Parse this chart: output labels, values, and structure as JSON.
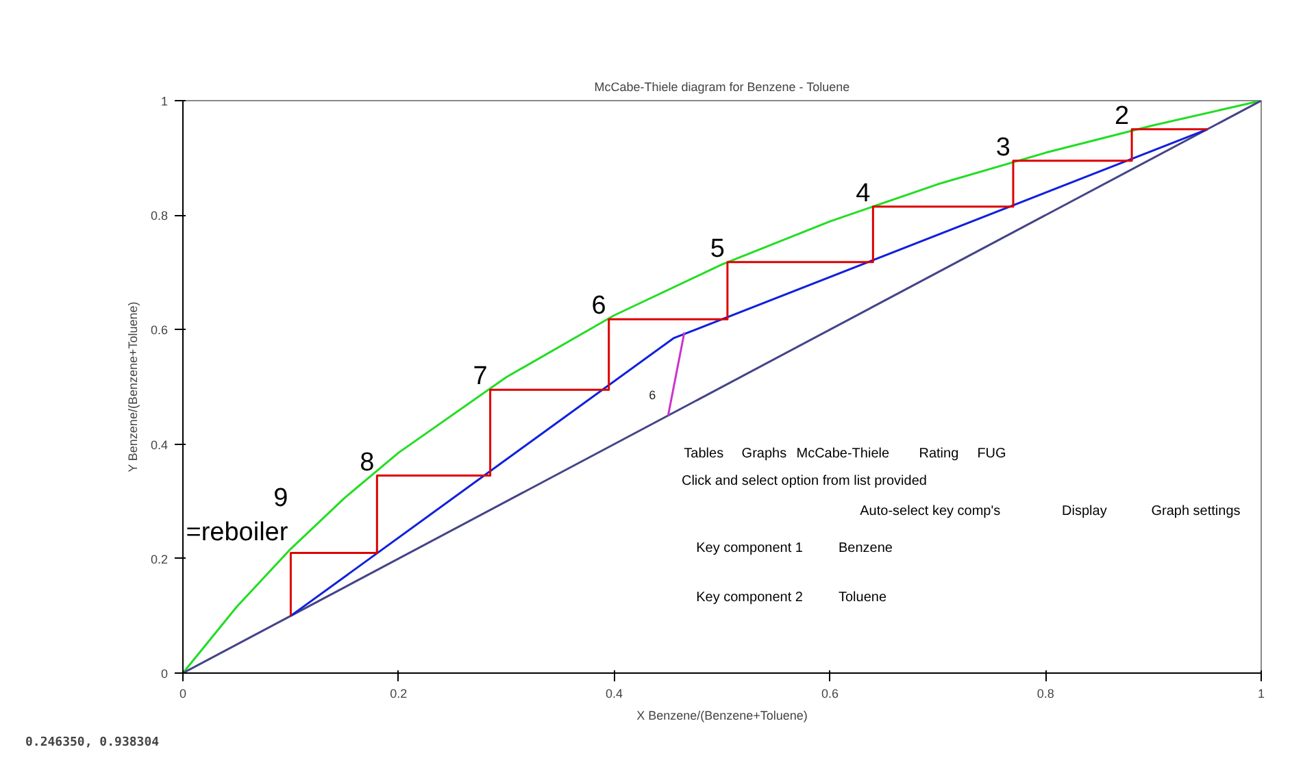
{
  "chart_data": {
    "type": "line",
    "title": "McCabe-Thiele diagram for Benzene - Toluene",
    "xlabel": "X Benzene/(Benzene+Toluene)",
    "ylabel": "Y Benzene/(Benzene+Toluene)",
    "xlim": [
      0,
      1
    ],
    "ylim": [
      0,
      1
    ],
    "xticks": [
      0,
      0.2,
      0.4,
      0.6,
      0.8,
      1
    ],
    "yticks": [
      0,
      0.2,
      0.4,
      0.6,
      0.8,
      1
    ],
    "series": [
      {
        "color": "#22dd22",
        "x": [
          0,
          0.05,
          0.1,
          0.15,
          0.2,
          0.3,
          0.4,
          0.5,
          0.6,
          0.7,
          0.8,
          0.9,
          1
        ],
        "values": [
          0,
          0.116,
          0.217,
          0.306,
          0.385,
          0.517,
          0.625,
          0.714,
          0.789,
          0.854,
          0.909,
          0.957,
          1
        ]
      },
      {
        "color": "#444488",
        "x": [
          0,
          1
        ],
        "values": [
          0,
          1
        ]
      },
      {
        "color": "#1020dd",
        "x": [
          0.1,
          0.455,
          0.95
        ],
        "values": [
          0.1,
          0.585,
          0.95
        ]
      },
      {
        "color": "#dd0000",
        "x": [
          0.95,
          0.88,
          0.88,
          0.77,
          0.77,
          0.64,
          0.64,
          0.505,
          0.505,
          0.395,
          0.395,
          0.285,
          0.285,
          0.18,
          0.18,
          0.1,
          0.1
        ],
        "values": [
          0.95,
          0.95,
          0.895,
          0.895,
          0.815,
          0.815,
          0.718,
          0.718,
          0.618,
          0.618,
          0.495,
          0.495,
          0.345,
          0.345,
          0.21,
          0.21,
          0.1
        ]
      },
      {
        "name": "6",
        "color": "#cc33cc",
        "x": [
          0.45,
          0.465
        ],
        "values": [
          0.45,
          0.595
        ]
      }
    ],
    "annotations": [
      {
        "text": "2",
        "x": 0.88,
        "y": 0.95
      },
      {
        "text": "3",
        "x": 0.77,
        "y": 0.895
      },
      {
        "text": "4",
        "x": 0.64,
        "y": 0.815
      },
      {
        "text": "5",
        "x": 0.505,
        "y": 0.718
      },
      {
        "text": "6",
        "x": 0.395,
        "y": 0.618
      },
      {
        "text": "7",
        "x": 0.285,
        "y": 0.495
      },
      {
        "text": "8",
        "x": 0.18,
        "y": 0.345
      },
      {
        "text": "9\n=reboiler",
        "x": 0.1,
        "y": 0.21
      },
      "0.246350, 0.938304",
      "Tables",
      "Graphs",
      "McCabe-Thiele",
      "Rating",
      "FUG",
      "Click and select option from list provided",
      "Auto-select key comp's",
      "Display",
      "Graph settings",
      "Key component 1",
      "Benzene",
      "Key component 2",
      "Toluene"
    ]
  }
}
